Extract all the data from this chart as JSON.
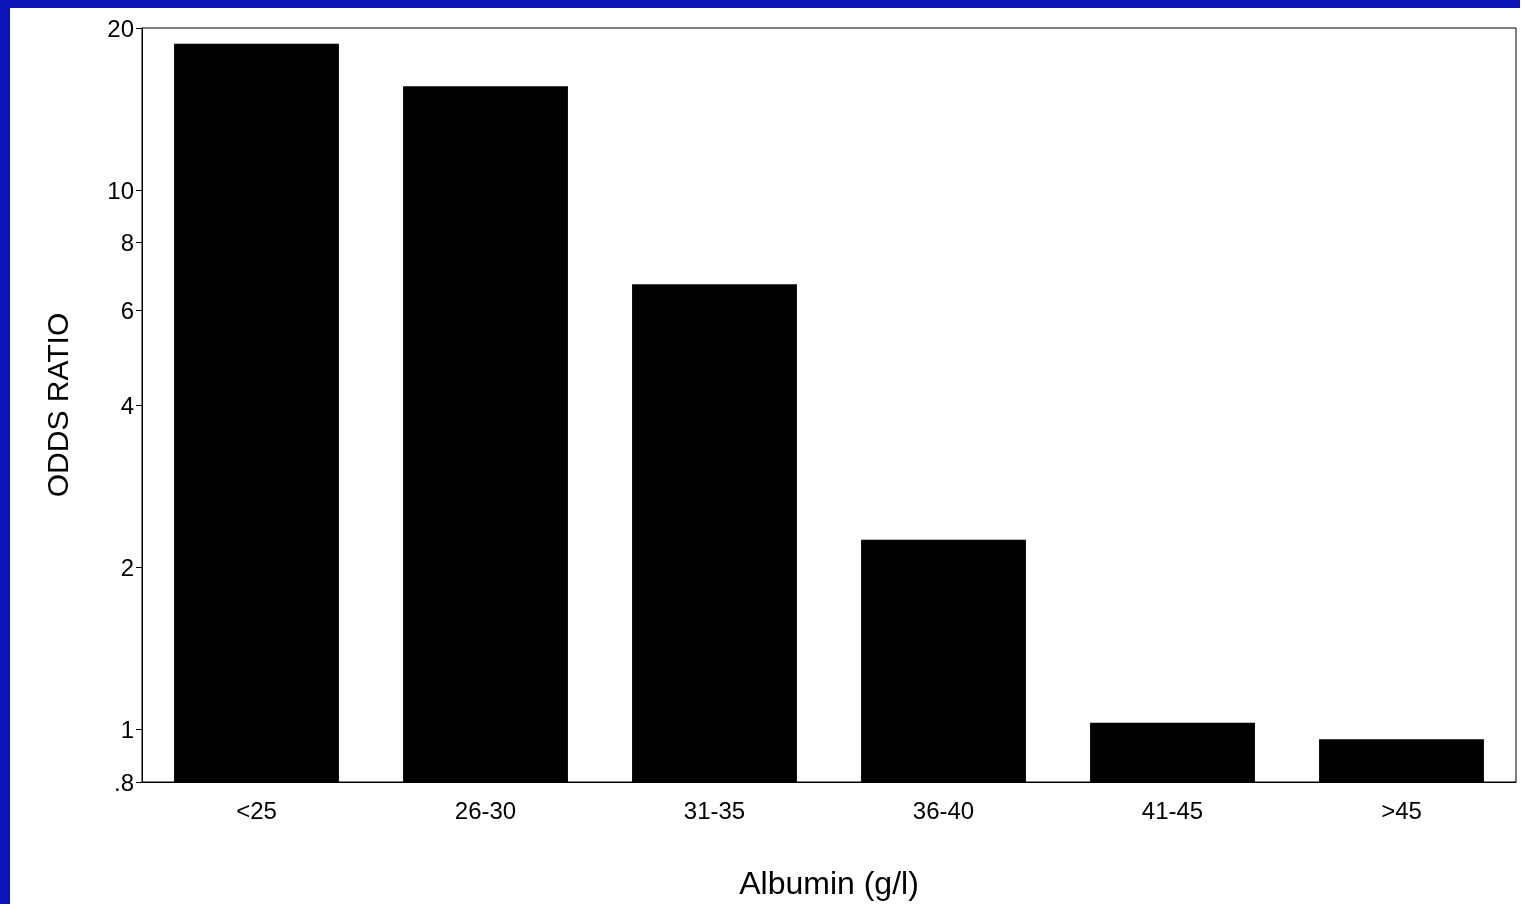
{
  "chart_data": {
    "type": "bar",
    "xlabel": "Albumin (g/l)",
    "ylabel": "ODDS RATIO",
    "categories": [
      "<25",
      "26-30",
      "31-35",
      "36-40",
      "41-45",
      ">45"
    ],
    "values": [
      18.7,
      15.6,
      6.7,
      2.25,
      1.03,
      0.96
    ],
    "color": "#000000",
    "log": "y",
    "ylim": [
      0.8,
      20
    ],
    "yticks": [
      {
        "value": 0.8,
        "label": ".8"
      },
      1,
      2,
      4,
      6,
      8,
      10,
      20
    ],
    "grid": false
  }
}
